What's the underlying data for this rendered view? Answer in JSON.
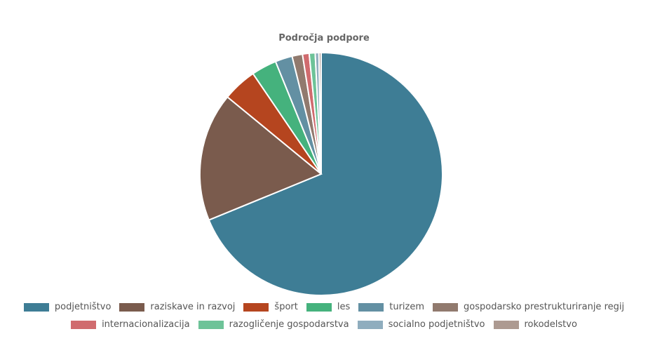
{
  "chart_data": {
    "type": "pie",
    "title": "Področja podpore",
    "categories": [
      "podjetništvo",
      "raziskave in razvoj",
      "šport",
      "les",
      "turizem",
      "gospodarsko prestrukturiranje regij",
      "internacionalizacija",
      "razogličenje gospodarstva",
      "socialno podjetništvo",
      "rokodelstvo"
    ],
    "values": [
      69.5,
      17.3,
      4.6,
      3.4,
      2.3,
      1.4,
      0.9,
      0.8,
      0.5,
      0.3
    ],
    "unit": "%",
    "colors": [
      "#3e7d95",
      "#7a5b4d",
      "#b5451f",
      "#45b27d",
      "#6390a3",
      "#917a6e",
      "#d06b6e",
      "#6dc398",
      "#8fadbe",
      "#ad9a91"
    ],
    "legend_position": "bottom"
  }
}
